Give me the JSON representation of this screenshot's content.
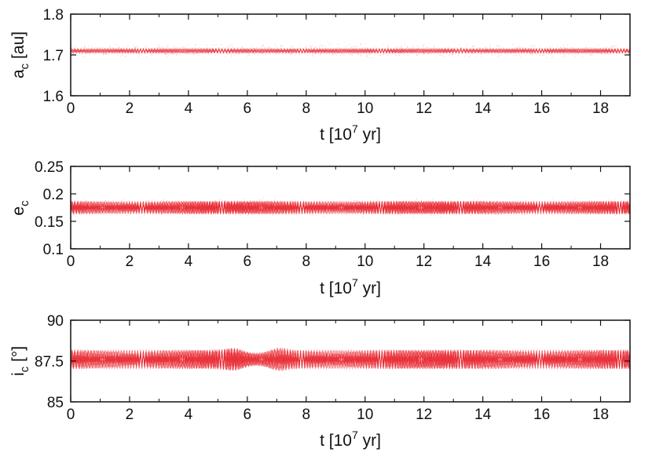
{
  "chart_data": [
    {
      "type": "line",
      "title": "",
      "ylabel": "a",
      "ylabel_sub": "c",
      "ylabel_unit": " [au]",
      "xlabel": "t [10",
      "xlabel_sup": "7",
      "xlabel_unit": " yr]",
      "xlim": [
        0,
        19
      ],
      "ylim": [
        1.6,
        1.8
      ],
      "xticks": [
        0,
        2,
        4,
        6,
        8,
        10,
        12,
        14,
        16,
        18
      ],
      "yticks": [
        "1.6",
        "1.7",
        "1.8"
      ],
      "grid": false,
      "color": "#e8202a",
      "series": [
        {
          "signal": "narrow-band",
          "mean": 1.71,
          "amplitude": 0.006,
          "scatter": 0.02,
          "x": [
            0,
            19
          ]
        }
      ]
    },
    {
      "type": "line",
      "title": "",
      "ylabel": "e",
      "ylabel_sub": "c",
      "ylabel_unit": "",
      "xlabel": "t [10",
      "xlabel_sup": "7",
      "xlabel_unit": " yr]",
      "xlim": [
        0,
        19
      ],
      "ylim": [
        0.1,
        0.25
      ],
      "xticks": [
        0,
        2,
        4,
        6,
        8,
        10,
        12,
        14,
        16,
        18
      ],
      "yticks": [
        "0.1",
        "0.15",
        "0.2",
        "0.25"
      ],
      "grid": false,
      "color": "#e8202a",
      "series": [
        {
          "signal": "oscillating-band",
          "mean": 0.175,
          "amplitude": 0.012,
          "scatter": 0.02,
          "x": [
            0,
            19
          ]
        }
      ]
    },
    {
      "type": "line",
      "title": "",
      "ylabel": "i",
      "ylabel_sub": "c",
      "ylabel_unit": " [°]",
      "xlabel": "t [10",
      "xlabel_sup": "7",
      "xlabel_unit": " yr]",
      "xlim": [
        0,
        19
      ],
      "ylim": [
        85,
        90
      ],
      "xticks": [
        0,
        2,
        4,
        6,
        8,
        10,
        12,
        14,
        16,
        18
      ],
      "yticks": [
        "85",
        "87.5",
        "90"
      ],
      "grid": false,
      "color": "#e8202a",
      "series": [
        {
          "signal": "oscillating-band",
          "mean": 87.6,
          "amplitude": 0.6,
          "x": [
            0,
            19
          ],
          "beat_minimum_at": 6.3
        }
      ]
    }
  ]
}
